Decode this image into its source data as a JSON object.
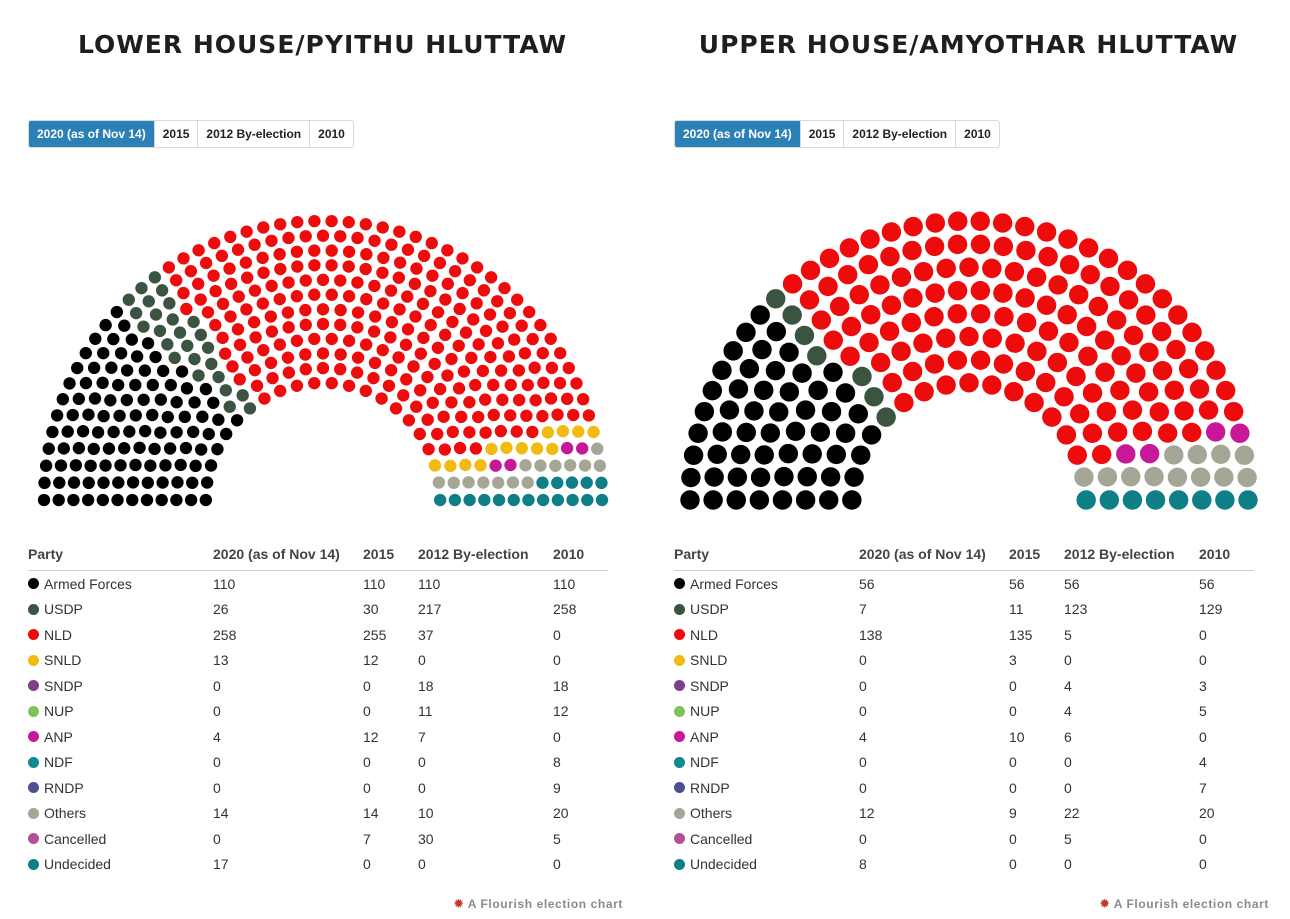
{
  "colors": {
    "Armed Forces": "#000000",
    "USDP": "#3b5440",
    "NLD": "#ee0b0b",
    "SNLD": "#f1bb12",
    "SNDP": "#7b3f8c",
    "NUP": "#7cc35a",
    "ANP": "#c8189a",
    "NDF": "#0e8a8f",
    "RNDP": "#4d4d94",
    "Others": "#a6a696",
    "Cancelled": "#b0509a",
    "Undecided": "#0e7f86"
  },
  "tab_active_color": "#2b80b6",
  "credit": "A Flourish election chart",
  "chart_data": [
    {
      "type": "parliament",
      "title": "LOWER HOUSE/PYITHU HLUTTAW",
      "tabs": [
        "2020 (as of Nov 14)",
        "2015",
        "2012 By-election",
        "2010"
      ],
      "selected_tab": "2020 (as of Nov 14)",
      "rows": 12,
      "headers": [
        "Party",
        "2020 (as of Nov 14)",
        "2015",
        "2012 By-election",
        "2010"
      ],
      "parties": [
        {
          "name": "Armed Forces",
          "values": [
            110,
            110,
            110,
            110
          ]
        },
        {
          "name": "USDP",
          "values": [
            26,
            30,
            217,
            258
          ]
        },
        {
          "name": "NLD",
          "values": [
            258,
            255,
            37,
            0
          ]
        },
        {
          "name": "SNLD",
          "values": [
            13,
            12,
            0,
            0
          ]
        },
        {
          "name": "SNDP",
          "values": [
            0,
            0,
            18,
            18
          ]
        },
        {
          "name": "NUP",
          "values": [
            0,
            0,
            11,
            12
          ]
        },
        {
          "name": "ANP",
          "values": [
            4,
            12,
            7,
            0
          ]
        },
        {
          "name": "NDF",
          "values": [
            0,
            0,
            0,
            8
          ]
        },
        {
          "name": "RNDP",
          "values": [
            0,
            0,
            0,
            9
          ]
        },
        {
          "name": "Others",
          "values": [
            14,
            14,
            10,
            20
          ]
        },
        {
          "name": "Cancelled",
          "values": [
            0,
            7,
            30,
            5
          ]
        },
        {
          "name": "Undecided",
          "values": [
            17,
            0,
            0,
            0
          ]
        }
      ]
    },
    {
      "type": "parliament",
      "title": "UPPER HOUSE/AMYOTHAR HLUTTAW",
      "tabs": [
        "2020 (as of Nov 14)",
        "2015",
        "2012 By-election",
        "2010"
      ],
      "selected_tab": "2020 (as of Nov 14)",
      "rows": 8,
      "headers": [
        "Party",
        "2020 (as of Nov 14)",
        "2015",
        "2012 By-election",
        "2010"
      ],
      "parties": [
        {
          "name": "Armed Forces",
          "values": [
            56,
            56,
            56,
            56
          ]
        },
        {
          "name": "USDP",
          "values": [
            7,
            11,
            123,
            129
          ]
        },
        {
          "name": "NLD",
          "values": [
            138,
            135,
            5,
            0
          ]
        },
        {
          "name": "SNLD",
          "values": [
            0,
            3,
            0,
            0
          ]
        },
        {
          "name": "SNDP",
          "values": [
            0,
            0,
            4,
            3
          ]
        },
        {
          "name": "NUP",
          "values": [
            0,
            0,
            4,
            5
          ]
        },
        {
          "name": "ANP",
          "values": [
            4,
            10,
            6,
            0
          ]
        },
        {
          "name": "NDF",
          "values": [
            0,
            0,
            0,
            4
          ]
        },
        {
          "name": "RNDP",
          "values": [
            0,
            0,
            0,
            7
          ]
        },
        {
          "name": "Others",
          "values": [
            12,
            9,
            22,
            20
          ]
        },
        {
          "name": "Cancelled",
          "values": [
            0,
            0,
            5,
            0
          ]
        },
        {
          "name": "Undecided",
          "values": [
            8,
            0,
            0,
            0
          ]
        }
      ]
    }
  ]
}
